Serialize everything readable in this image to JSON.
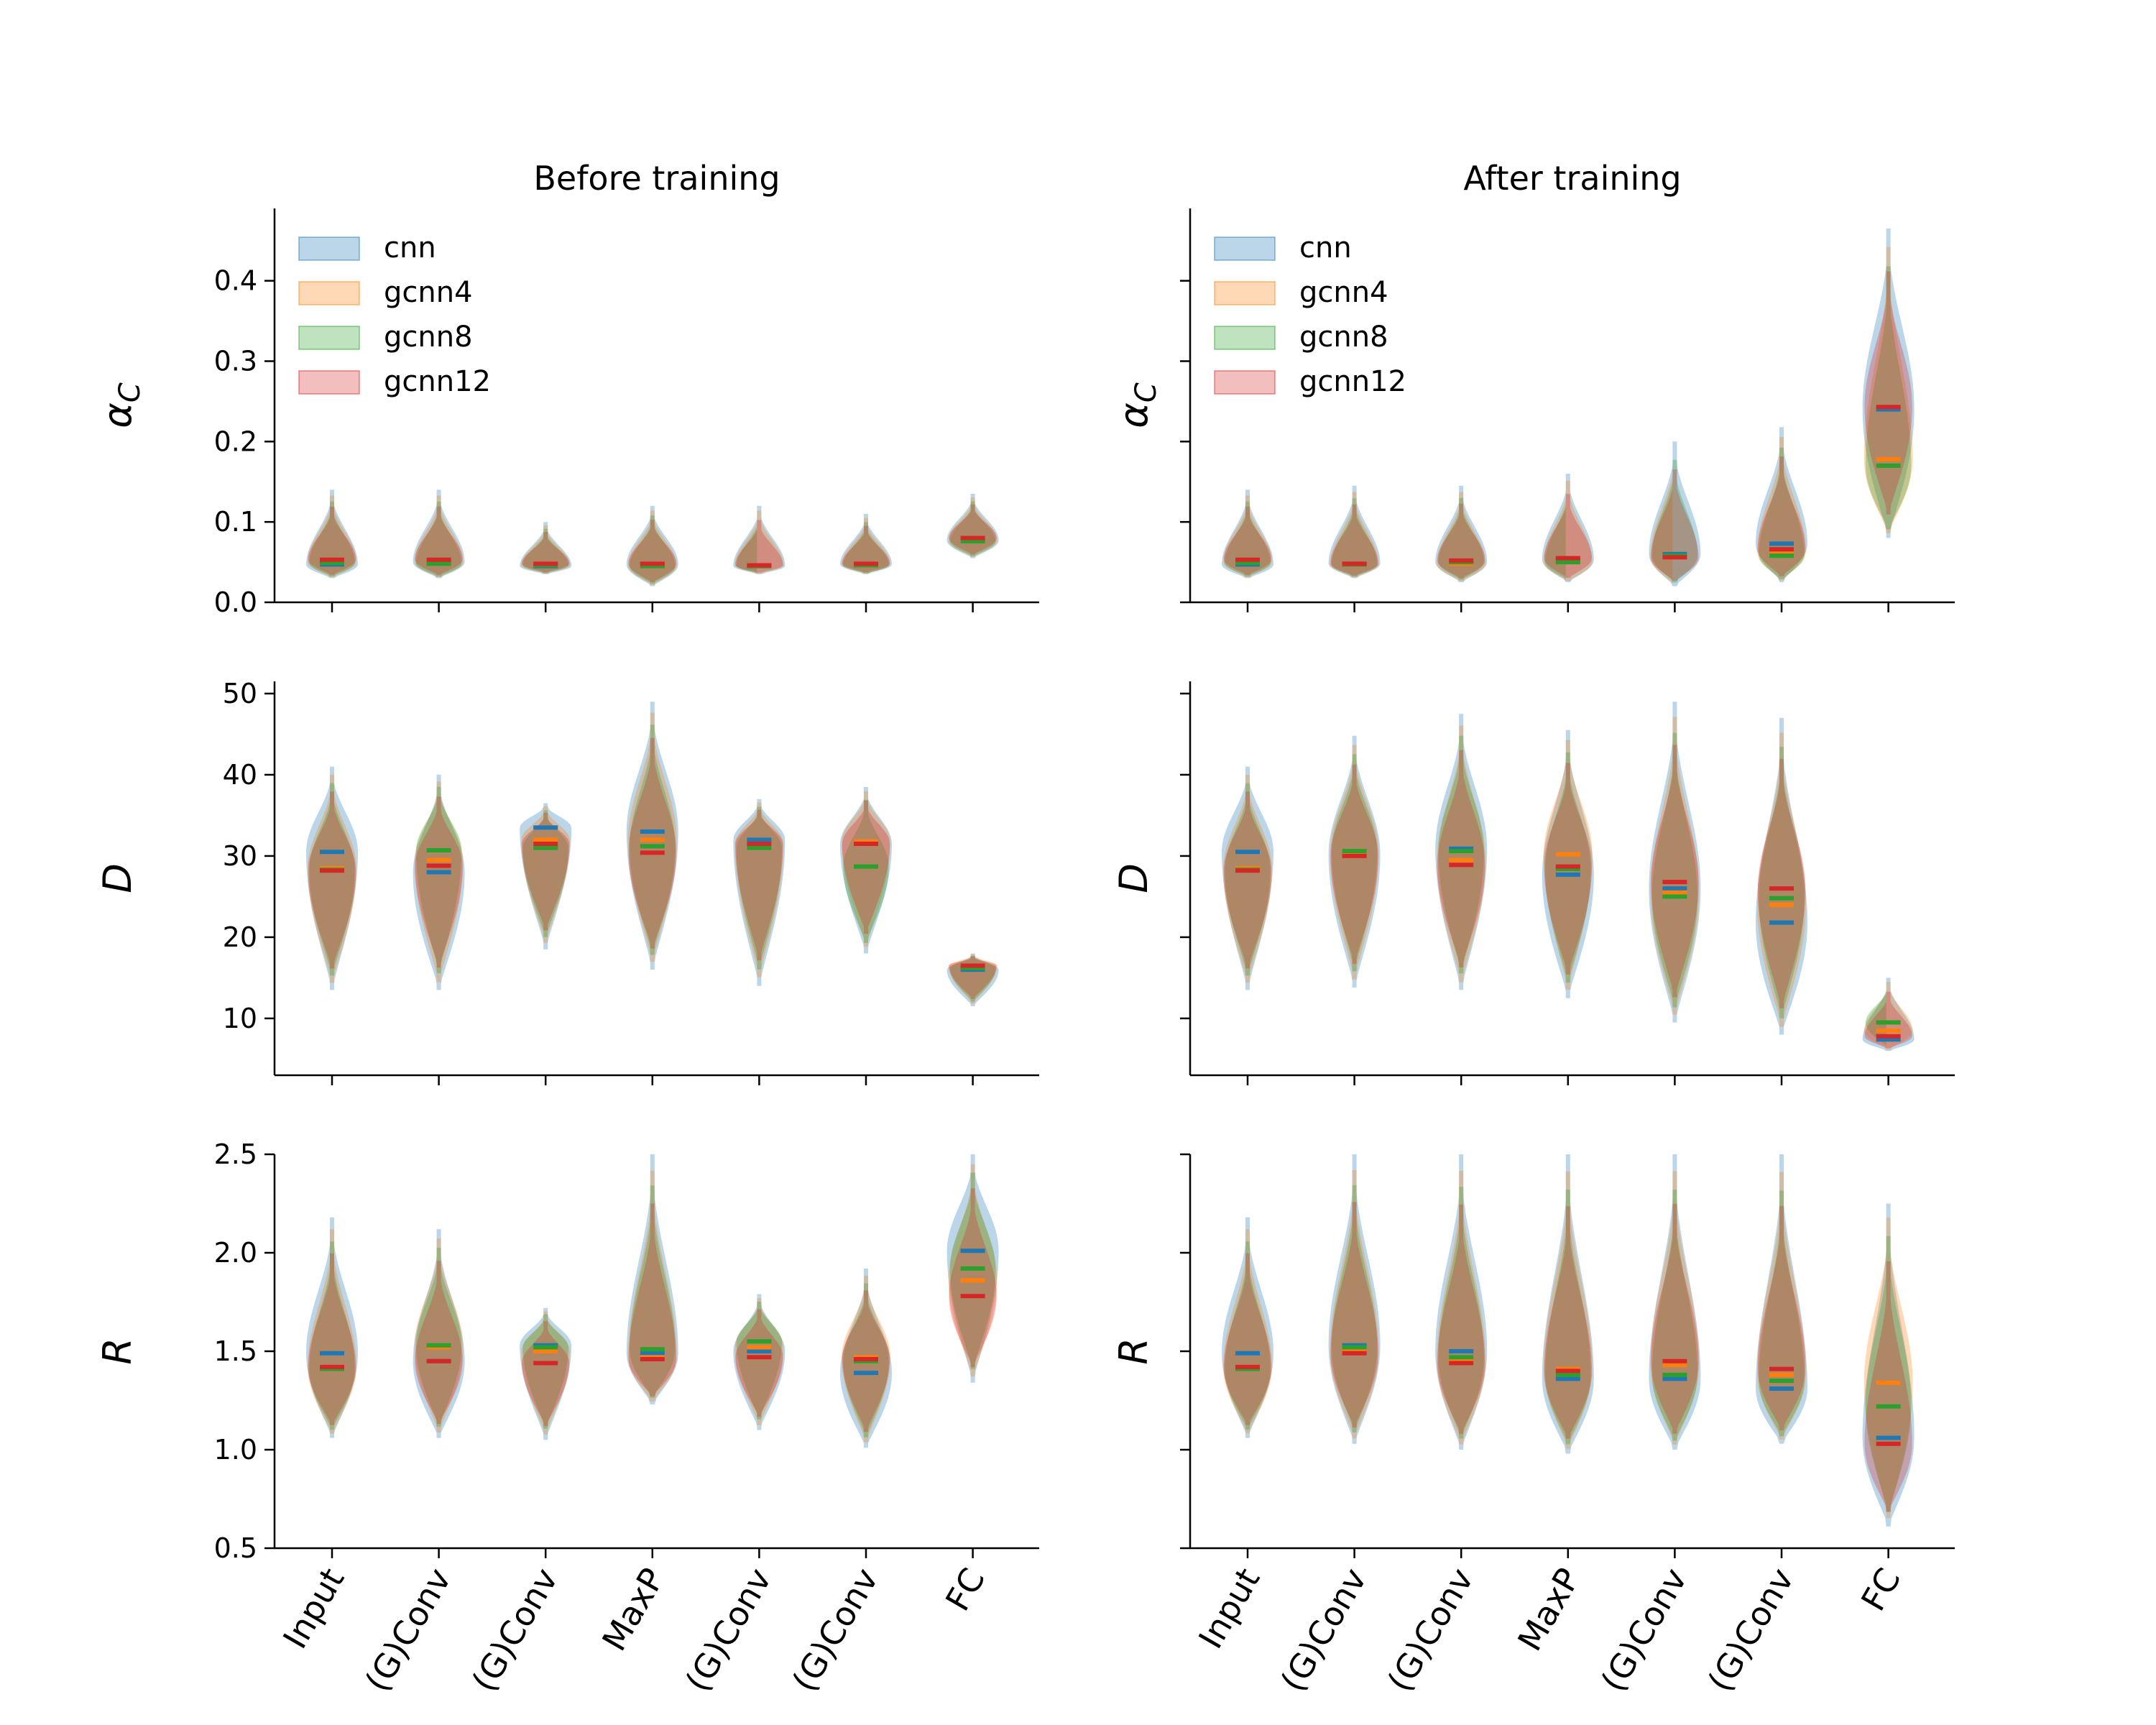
{
  "chart_data": {
    "type": "violin",
    "figure": "multi-panel violin plots",
    "categories": [
      "Input",
      "(G)Conv",
      "(G)Conv",
      "MaxP",
      "(G)Conv",
      "(G)Conv",
      "FC"
    ],
    "legend": [
      "cnn",
      "gcnn4",
      "gcnn8",
      "gcnn12"
    ],
    "colors": {
      "cnn": "#1f77b4",
      "gcnn4": "#ff7f0e",
      "gcnn8": "#2ca02c",
      "gcnn12": "#d62728"
    },
    "legend_placement": "upper-left",
    "columns": [
      {
        "title": "Before training"
      },
      {
        "title": "After training"
      }
    ],
    "rows": [
      {
        "ylabel_main": "α",
        "ylabel_sub": "C",
        "ylim": [
          0,
          0.49
        ],
        "ticks": [
          0.0,
          0.1,
          0.2,
          0.3,
          0.4
        ],
        "tick_labels": [
          "0.0",
          "0.1",
          "0.2",
          "0.3",
          "0.4"
        ]
      },
      {
        "ylabel_main": "D",
        "ylabel_sub": "",
        "ylim": [
          3,
          51.5
        ],
        "ticks": [
          10,
          20,
          30,
          40,
          50
        ],
        "tick_labels": [
          "10",
          "20",
          "30",
          "40",
          "50"
        ]
      },
      {
        "ylabel_main": "R",
        "ylabel_sub": "",
        "ylim": [
          0.5,
          2.5
        ],
        "ticks": [
          0.5,
          1.0,
          1.5,
          2.0,
          2.5
        ],
        "tick_labels": [
          "0.5",
          "1.0",
          "1.5",
          "2.0",
          "2.5"
        ]
      }
    ],
    "panels": [
      {
        "row": 0,
        "col": 0,
        "medians": {
          "cnn": [
            0.047,
            0.05,
            0.045,
            0.047,
            0.045,
            0.047,
            0.077
          ],
          "gcnn4": [
            0.05,
            0.05,
            0.046,
            0.046,
            0.046,
            0.047,
            0.077
          ],
          "gcnn8": [
            0.049,
            0.048,
            0.046,
            0.045,
            0.045,
            0.046,
            0.076
          ],
          "gcnn12": [
            0.053,
            0.053,
            0.048,
            0.048,
            0.046,
            0.048,
            0.08
          ]
        },
        "ranges": [
          [
            0.03,
            0.14
          ],
          [
            0.03,
            0.14
          ],
          [
            0.035,
            0.1
          ],
          [
            0.02,
            0.12
          ],
          [
            0.035,
            0.12
          ],
          [
            0.035,
            0.11
          ],
          [
            0.055,
            0.135
          ]
        ]
      },
      {
        "row": 0,
        "col": 1,
        "medians": {
          "cnn": [
            0.047,
            0.048,
            0.05,
            0.053,
            0.06,
            0.073,
            0.24
          ],
          "gcnn4": [
            0.05,
            0.047,
            0.048,
            0.05,
            0.056,
            0.063,
            0.178
          ],
          "gcnn8": [
            0.049,
            0.047,
            0.05,
            0.05,
            0.058,
            0.058,
            0.17
          ],
          "gcnn12": [
            0.053,
            0.048,
            0.052,
            0.055,
            0.056,
            0.066,
            0.243
          ]
        },
        "ranges": [
          [
            0.03,
            0.14
          ],
          [
            0.03,
            0.145
          ],
          [
            0.025,
            0.145
          ],
          [
            0.025,
            0.16
          ],
          [
            0.02,
            0.2
          ],
          [
            0.025,
            0.218
          ],
          [
            0.08,
            0.465
          ]
        ]
      },
      {
        "row": 1,
        "col": 0,
        "medians": {
          "cnn": [
            30.5,
            28.0,
            33.5,
            33.0,
            32.0,
            31.5,
            16.0
          ],
          "gcnn4": [
            28.5,
            29.5,
            32.0,
            32.0,
            31.5,
            31.8,
            16.5
          ],
          "gcnn8": [
            28.3,
            30.7,
            31.0,
            31.2,
            31.0,
            28.7,
            16.2
          ],
          "gcnn12": [
            28.2,
            28.8,
            31.5,
            30.4,
            31.5,
            31.5,
            16.5
          ]
        },
        "ranges": [
          [
            13.5,
            41.0
          ],
          [
            13.5,
            40.0
          ],
          [
            18.5,
            36.5
          ],
          [
            16.0,
            49.0
          ],
          [
            14.0,
            37.0
          ],
          [
            18.0,
            38.5
          ],
          [
            11.5,
            18.0
          ]
        ]
      },
      {
        "row": 1,
        "col": 1,
        "medians": {
          "cnn": [
            30.5,
            30.2,
            30.9,
            27.7,
            26.0,
            21.8,
            7.4
          ],
          "gcnn4": [
            28.5,
            30.5,
            29.5,
            30.2,
            25.5,
            24.0,
            8.5
          ],
          "gcnn8": [
            28.3,
            30.6,
            30.6,
            28.4,
            25.0,
            24.8,
            9.5
          ],
          "gcnn12": [
            28.2,
            30.0,
            28.9,
            28.7,
            26.8,
            26.0,
            7.8
          ]
        },
        "ranges": [
          [
            13.5,
            41.0
          ],
          [
            13.8,
            44.8
          ],
          [
            13.5,
            47.5
          ],
          [
            12.5,
            45.5
          ],
          [
            9.5,
            49.0
          ],
          [
            8.0,
            47.0
          ],
          [
            6.0,
            15.0
          ]
        ]
      },
      {
        "row": 2,
        "col": 0,
        "medians": {
          "cnn": [
            1.49,
            1.45,
            1.53,
            1.49,
            1.5,
            1.39,
            2.01
          ],
          "gcnn4": [
            1.42,
            1.52,
            1.5,
            1.47,
            1.52,
            1.47,
            1.86
          ],
          "gcnn8": [
            1.41,
            1.53,
            1.52,
            1.51,
            1.55,
            1.45,
            1.92
          ],
          "gcnn12": [
            1.42,
            1.45,
            1.44,
            1.46,
            1.47,
            1.46,
            1.78
          ]
        },
        "ranges": [
          [
            1.06,
            2.18
          ],
          [
            1.06,
            2.12
          ],
          [
            1.05,
            1.72
          ],
          [
            1.23,
            2.5
          ],
          [
            1.1,
            1.79
          ],
          [
            1.01,
            1.92
          ],
          [
            1.34,
            2.5
          ]
        ]
      },
      {
        "row": 2,
        "col": 1,
        "medians": {
          "cnn": [
            1.49,
            1.53,
            1.5,
            1.36,
            1.36,
            1.31,
            1.06
          ],
          "gcnn4": [
            1.42,
            1.5,
            1.45,
            1.41,
            1.43,
            1.38,
            1.34
          ],
          "gcnn8": [
            1.41,
            1.52,
            1.47,
            1.38,
            1.38,
            1.35,
            1.22
          ],
          "gcnn12": [
            1.42,
            1.49,
            1.44,
            1.4,
            1.45,
            1.41,
            1.03
          ]
        },
        "ranges": [
          [
            1.06,
            2.18
          ],
          [
            1.03,
            2.5
          ],
          [
            1.0,
            2.5
          ],
          [
            0.98,
            2.5
          ],
          [
            1.0,
            2.5
          ],
          [
            1.03,
            2.5
          ],
          [
            0.61,
            2.25
          ]
        ]
      }
    ]
  }
}
